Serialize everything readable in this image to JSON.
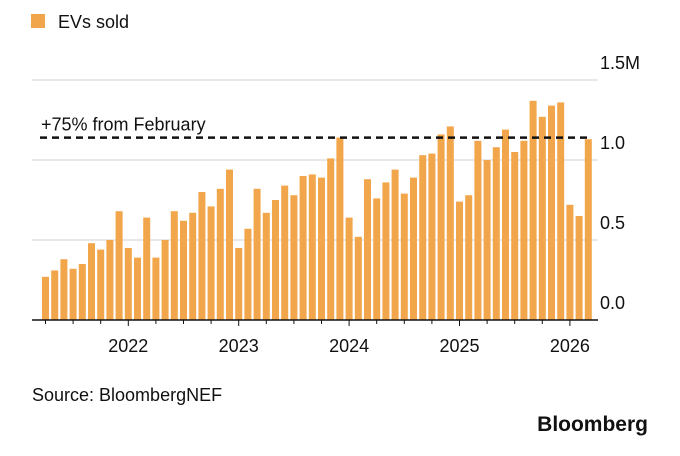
{
  "chart_data": {
    "type": "bar",
    "legend_label": "EVs sold",
    "color": "#f2a64b",
    "categories": [
      null,
      null,
      null,
      null,
      null,
      null,
      null,
      null,
      null,
      "2022",
      null,
      null,
      null,
      null,
      null,
      null,
      null,
      null,
      null,
      null,
      null,
      "2023",
      null,
      null,
      null,
      null,
      null,
      null,
      null,
      null,
      null,
      null,
      null,
      "2024",
      null,
      null,
      null,
      null,
      null,
      null,
      null,
      null,
      null,
      null,
      null,
      "2025",
      null,
      null,
      null,
      null,
      null,
      null,
      null,
      null,
      null,
      null,
      null,
      "2026",
      null,
      null
    ],
    "values": [
      0.27,
      0.31,
      0.38,
      0.32,
      0.35,
      0.48,
      0.44,
      0.5,
      0.68,
      0.45,
      0.39,
      0.64,
      0.39,
      0.5,
      0.68,
      0.62,
      0.67,
      0.8,
      0.71,
      0.82,
      0.94,
      0.45,
      0.57,
      0.82,
      0.67,
      0.75,
      0.84,
      0.78,
      0.9,
      0.91,
      0.89,
      1.01,
      1.14,
      0.64,
      0.52,
      0.88,
      0.76,
      0.86,
      0.94,
      0.79,
      0.89,
      1.03,
      1.04,
      1.16,
      1.21,
      0.74,
      0.78,
      1.12,
      1.0,
      1.08,
      1.19,
      1.05,
      1.12,
      1.37,
      1.27,
      1.34,
      1.36,
      0.72,
      0.65,
      1.13
    ],
    "ylim": [
      0,
      1.5
    ],
    "yticks": [
      {
        "value": 0,
        "label": "0.0"
      },
      0.5,
      {
        "value": 1,
        "label": "1.0"
      },
      {
        "value": 1.5,
        "label": "1.5M"
      }
    ],
    "grid": true,
    "reference_line": {
      "value": 1.14,
      "label": "+75% from February"
    },
    "source": "Source: BloombergNEF",
    "brand": "Bloomberg"
  }
}
